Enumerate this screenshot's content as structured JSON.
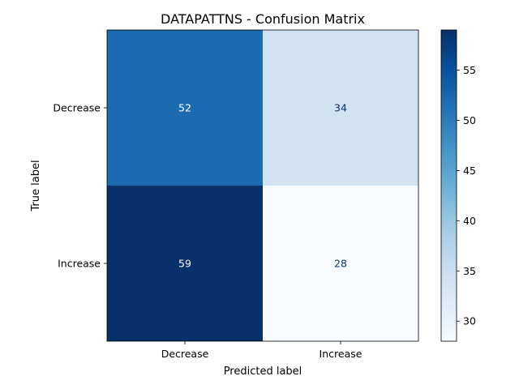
{
  "chart_data": {
    "type": "heatmap",
    "title": "DATAPATTNS - Confusion Matrix",
    "xlabel": "Predicted label",
    "ylabel": "True label",
    "x_categories": [
      "Decrease",
      "Increase"
    ],
    "y_categories": [
      "Decrease",
      "Increase"
    ],
    "values": [
      [
        52,
        34
      ],
      [
        59,
        28
      ]
    ],
    "colormap": "Blues",
    "color_range": [
      28,
      59
    ],
    "colorbar": {
      "ticks": [
        30,
        35,
        40,
        45,
        50,
        55
      ],
      "tick_labels": [
        "30",
        "35",
        "40",
        "45",
        "50",
        "55"
      ],
      "position": "right"
    },
    "grid": false
  }
}
